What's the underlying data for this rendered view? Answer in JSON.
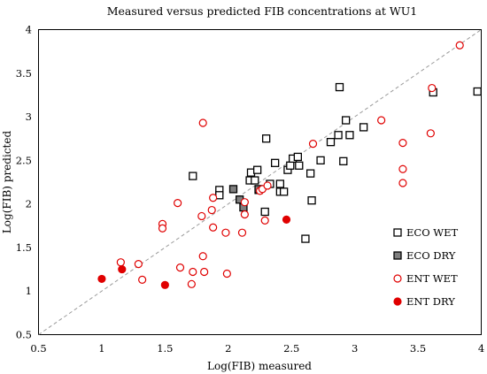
{
  "chart_data": {
    "type": "scatter",
    "title": "Measured versus predicted FIB concentrations at WU1",
    "xlabel": "Log(FIB) measured",
    "ylabel": "Log(FIB) predicted",
    "xlim": [
      0.5,
      4
    ],
    "ylim": [
      0.5,
      4
    ],
    "xticks": [
      "0.5",
      "1",
      "1.5",
      "2",
      "2.5",
      "3",
      "3.5",
      "4"
    ],
    "yticks": [
      "0.5",
      "1",
      "1.5",
      "2",
      "2.5",
      "3",
      "3.5",
      "4"
    ],
    "grid": false,
    "reference_line": "1:1",
    "legend_position": "right",
    "series": [
      {
        "name": "ECO WET",
        "marker": "square-open",
        "color": "#000000",
        "points": [
          [
            1.72,
            2.32
          ],
          [
            1.93,
            2.16
          ],
          [
            1.93,
            2.1
          ],
          [
            2.17,
            2.27
          ],
          [
            2.18,
            2.36
          ],
          [
            2.21,
            2.27
          ],
          [
            2.23,
            2.39
          ],
          [
            2.24,
            2.16
          ],
          [
            2.29,
            1.91
          ],
          [
            2.3,
            2.75
          ],
          [
            2.33,
            2.23
          ],
          [
            2.37,
            2.47
          ],
          [
            2.41,
            2.23
          ],
          [
            2.41,
            2.14
          ],
          [
            2.44,
            2.14
          ],
          [
            2.47,
            2.39
          ],
          [
            2.49,
            2.44
          ],
          [
            2.51,
            2.52
          ],
          [
            2.55,
            2.54
          ],
          [
            2.56,
            2.44
          ],
          [
            2.61,
            1.6
          ],
          [
            2.65,
            2.35
          ],
          [
            2.66,
            2.04
          ],
          [
            2.73,
            2.5
          ],
          [
            2.81,
            2.71
          ],
          [
            2.87,
            2.79
          ],
          [
            2.88,
            3.34
          ],
          [
            2.91,
            2.49
          ],
          [
            2.93,
            2.96
          ],
          [
            2.96,
            2.79
          ],
          [
            3.07,
            2.88
          ],
          [
            3.62,
            3.28
          ],
          [
            3.97,
            3.29
          ]
        ]
      },
      {
        "name": "ECO DRY",
        "marker": "square-filled",
        "color": "#7f7f7f",
        "points": [
          [
            2.04,
            2.17
          ],
          [
            2.09,
            2.05
          ],
          [
            2.12,
            1.96
          ],
          [
            2.24,
            2.17
          ]
        ]
      },
      {
        "name": "ENT WET",
        "marker": "circle-open",
        "color": "#e00000",
        "points": [
          [
            1.15,
            1.33
          ],
          [
            1.29,
            1.31
          ],
          [
            1.32,
            1.13
          ],
          [
            1.48,
            1.77
          ],
          [
            1.48,
            1.72
          ],
          [
            1.6,
            2.01
          ],
          [
            1.62,
            1.27
          ],
          [
            1.71,
            1.08
          ],
          [
            1.72,
            1.22
          ],
          [
            1.79,
            1.86
          ],
          [
            1.8,
            2.93
          ],
          [
            1.8,
            1.4
          ],
          [
            1.81,
            1.22
          ],
          [
            1.87,
            1.93
          ],
          [
            1.88,
            1.73
          ],
          [
            1.88,
            2.07
          ],
          [
            1.98,
            1.67
          ],
          [
            1.99,
            1.2
          ],
          [
            2.11,
            1.67
          ],
          [
            2.13,
            2.02
          ],
          [
            2.13,
            1.88
          ],
          [
            2.25,
            2.15
          ],
          [
            2.27,
            2.17
          ],
          [
            2.29,
            1.81
          ],
          [
            2.31,
            2.21
          ],
          [
            2.67,
            2.69
          ],
          [
            3.21,
            2.96
          ],
          [
            3.38,
            2.7
          ],
          [
            3.38,
            2.4
          ],
          [
            3.38,
            2.24
          ],
          [
            3.6,
            2.81
          ],
          [
            3.61,
            3.33
          ],
          [
            3.83,
            3.82
          ]
        ]
      },
      {
        "name": "ENT DRY",
        "marker": "circle-filled",
        "color": "#e00000",
        "points": [
          [
            1.0,
            1.14
          ],
          [
            1.16,
            1.25
          ],
          [
            1.5,
            1.07
          ],
          [
            2.46,
            1.82
          ]
        ]
      }
    ]
  }
}
